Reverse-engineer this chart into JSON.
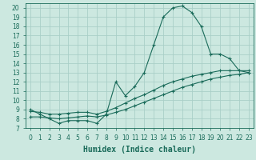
{
  "xlabel": "Humidex (Indice chaleur)",
  "bg_color": "#cce8e0",
  "grid_color": "#aacfc8",
  "line_color": "#1a6b5a",
  "xlim": [
    -0.5,
    23.5
  ],
  "ylim": [
    7,
    20.5
  ],
  "xticks": [
    0,
    1,
    2,
    3,
    4,
    5,
    6,
    7,
    8,
    9,
    10,
    11,
    12,
    13,
    14,
    15,
    16,
    17,
    18,
    19,
    20,
    21,
    22,
    23
  ],
  "yticks": [
    7,
    8,
    9,
    10,
    11,
    12,
    13,
    14,
    15,
    16,
    17,
    18,
    19,
    20
  ],
  "curve1_x": [
    0,
    1,
    2,
    3,
    4,
    5,
    6,
    7,
    8,
    9,
    10,
    11,
    12,
    13,
    14,
    15,
    16,
    17,
    18,
    19,
    20,
    21,
    22,
    23
  ],
  "curve1_y": [
    9.0,
    8.5,
    8.0,
    7.5,
    7.8,
    7.8,
    7.8,
    7.5,
    8.5,
    12.0,
    10.5,
    11.5,
    13.0,
    16.0,
    19.0,
    20.0,
    20.2,
    19.5,
    18.0,
    15.0,
    15.0,
    14.5,
    13.2,
    13.0
  ],
  "curve2_x": [
    0,
    1,
    2,
    3,
    4,
    5,
    6,
    7,
    8,
    9,
    10,
    11,
    12,
    13,
    14,
    15,
    16,
    17,
    18,
    19,
    20,
    21,
    22,
    23
  ],
  "curve2_y": [
    8.8,
    8.7,
    8.5,
    8.5,
    8.6,
    8.7,
    8.7,
    8.5,
    8.8,
    9.2,
    9.7,
    10.2,
    10.6,
    11.1,
    11.6,
    12.0,
    12.3,
    12.6,
    12.8,
    13.0,
    13.2,
    13.2,
    13.2,
    13.2
  ],
  "curve3_x": [
    0,
    1,
    2,
    3,
    4,
    5,
    6,
    7,
    8,
    9,
    10,
    11,
    12,
    13,
    14,
    15,
    16,
    17,
    18,
    19,
    20,
    21,
    22,
    23
  ],
  "curve3_y": [
    8.2,
    8.2,
    8.1,
    8.0,
    8.1,
    8.2,
    8.3,
    8.2,
    8.4,
    8.7,
    9.0,
    9.4,
    9.8,
    10.2,
    10.6,
    11.0,
    11.4,
    11.7,
    12.0,
    12.3,
    12.5,
    12.7,
    12.8,
    13.0
  ],
  "xlabel_fontsize": 7,
  "tick_fontsize": 5.5
}
